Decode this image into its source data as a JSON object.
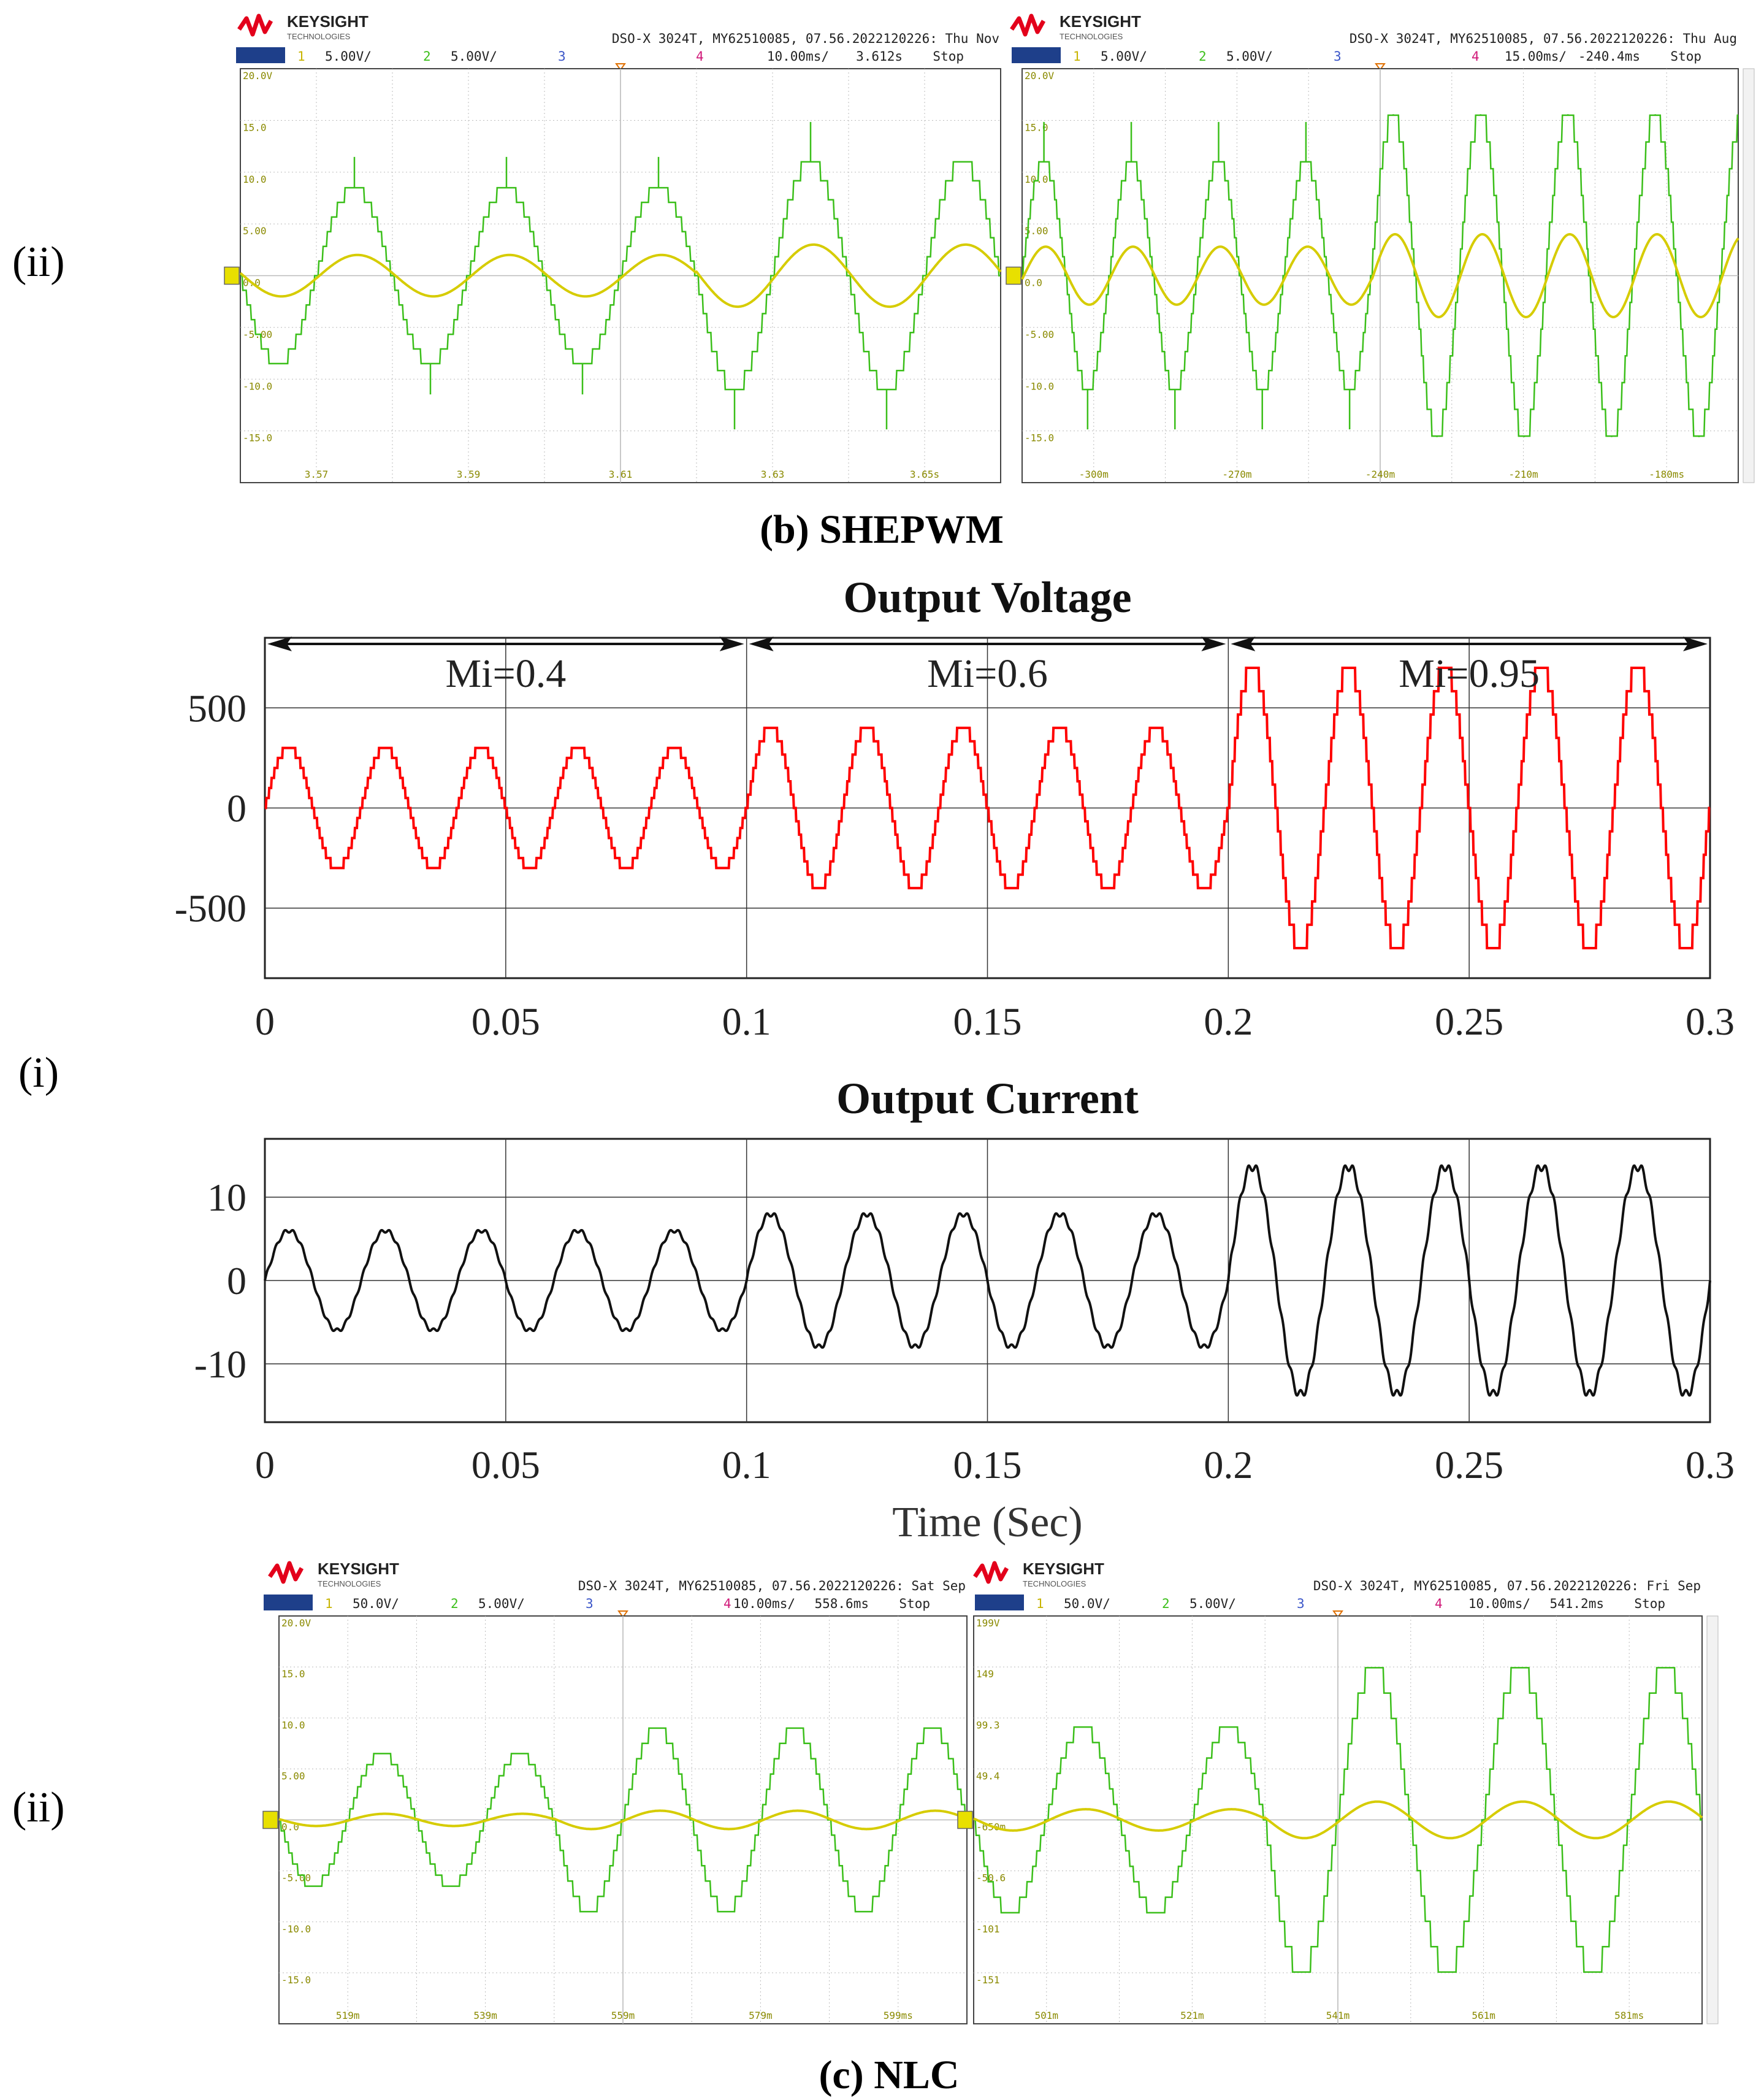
{
  "colors": {
    "scope_green": "#3bbf1a",
    "scope_yellow": "#d6cc00",
    "sim_red": "#ff0000",
    "sim_black": "#111111",
    "keysight_red": "#e3001b",
    "scope_grid": "#bbbbbb",
    "grid_label": "#8a8a00"
  },
  "figure": {
    "caption_b": "(b) SHEPWM",
    "caption_c": "(c) NLC",
    "label_top": "(ii)",
    "label_middle": "(i)",
    "label_bottom": "(ii)"
  },
  "scopes": [
    {
      "brand": "KEYSIGHT",
      "brand_sub": "TECHNOLOGIES",
      "header": "DSO-X 3024T, MY62510085, 07.56.2022120226: Thu Nov",
      "ch1_scale": "5.00V/",
      "ch2_scale": "5.00V/",
      "ch_nums": [
        "1",
        "2",
        "3",
        "4"
      ],
      "timebase": "10.00ms/",
      "delay": "3.612s",
      "status": "Stop",
      "ylabels": [
        "20.0V",
        "15.0",
        "10.0",
        "5.00",
        "0.0",
        "-5.00",
        "-10.0",
        "-15.0"
      ],
      "xlabels": [
        "3.57",
        "3.59",
        "3.61",
        "3.63",
        "3.65s"
      ]
    },
    {
      "brand": "KEYSIGHT",
      "brand_sub": "TECHNOLOGIES",
      "header": "DSO-X 3024T, MY62510085, 07.56.2022120226: Thu Aug",
      "ch1_scale": "5.00V/",
      "ch2_scale": "5.00V/",
      "ch_nums": [
        "1",
        "2",
        "3",
        "4"
      ],
      "timebase": "15.00ms/",
      "delay": "-240.4ms",
      "status": "Stop",
      "ylabels": [
        "20.0V",
        "15.0",
        "10.0",
        "5.00",
        "0.0",
        "-5.00",
        "-10.0",
        "-15.0"
      ],
      "xlabels": [
        "-300m",
        "-270m",
        "-240m",
        "-210m",
        "-180ms"
      ]
    },
    {
      "brand": "KEYSIGHT",
      "brand_sub": "TECHNOLOGIES",
      "header": "DSO-X 3024T, MY62510085, 07.56.2022120226: Sat Sep",
      "ch1_scale": "50.0V/",
      "ch2_scale": "5.00V/",
      "ch_nums": [
        "1",
        "2",
        "3",
        "4"
      ],
      "timebase": "10.00ms/",
      "delay": "558.6ms",
      "status": "Stop",
      "ylabels": [
        "20.0V",
        "15.0",
        "10.0",
        "5.00",
        "0.0",
        "-5.00",
        "-10.0",
        "-15.0"
      ],
      "xlabels": [
        "519m",
        "539m",
        "559m",
        "579m",
        "599ms"
      ]
    },
    {
      "brand": "KEYSIGHT",
      "brand_sub": "TECHNOLOGIES",
      "header": "DSO-X 3024T, MY62510085, 07.56.2022120226: Fri Sep",
      "ch1_scale": "50.0V/",
      "ch2_scale": "5.00V/",
      "ch_nums": [
        "1",
        "2",
        "3",
        "4"
      ],
      "timebase": "10.00ms/",
      "delay": "541.2ms",
      "status": "Stop",
      "ylabels": [
        "199V",
        "149",
        "99.3",
        "49.4",
        "-650m",
        "-50.6",
        "-101",
        "-151"
      ],
      "xlabels": [
        "501m",
        "521m",
        "541m",
        "561m",
        "581ms"
      ]
    }
  ],
  "chart_data": [
    {
      "type": "line",
      "title": "Output Voltage",
      "xlabel": "",
      "ylabel": "",
      "xlim": [
        0,
        0.3
      ],
      "ylim": [
        -850,
        850
      ],
      "xticks": [
        "0",
        "0.05",
        "0.1",
        "0.15",
        "0.2",
        "0.25",
        "0.3"
      ],
      "yticks": [
        "500",
        "0",
        "-500"
      ],
      "ytick_values": [
        500,
        0,
        -500
      ],
      "frequency_hz": 50,
      "segments": [
        {
          "label": "Mi=0.4",
          "start": 0,
          "end": 0.1,
          "amplitude": 300
        },
        {
          "label": "Mi=0.6",
          "start": 0.1,
          "end": 0.2,
          "amplitude": 400
        },
        {
          "label": "Mi=0.95",
          "start": 0.2,
          "end": 0.3,
          "amplitude": 700
        }
      ]
    },
    {
      "type": "line",
      "title": "Output Current",
      "xlabel": "Time (Sec)",
      "ylabel": "",
      "xlim": [
        0,
        0.3
      ],
      "ylim": [
        -17,
        17
      ],
      "xticks": [
        "0",
        "0.05",
        "0.1",
        "0.15",
        "0.2",
        "0.25",
        "0.3"
      ],
      "yticks": [
        "10",
        "0",
        "-10"
      ],
      "ytick_values": [
        10,
        0,
        -10
      ],
      "frequency_hz": 50,
      "segments": [
        {
          "start": 0,
          "end": 0.1,
          "amplitude": 6
        },
        {
          "start": 0.1,
          "end": 0.2,
          "amplitude": 8
        },
        {
          "start": 0.2,
          "end": 0.3,
          "amplitude": 13.7
        }
      ]
    },
    {
      "type": "line",
      "title": "SHEPWM scope capture 1",
      "x": [
        "3.57",
        "3.59",
        "3.61",
        "3.63",
        "3.65s"
      ],
      "series": [
        {
          "name": "Ch2 voltage (green)",
          "cycles": 5,
          "amplitudes": [
            8.5,
            8.5,
            8.5,
            11,
            11
          ],
          "peak_spike": 15
        },
        {
          "name": "Ch1 current (yellow)",
          "cycles": 5,
          "amplitudes": [
            2,
            2,
            2,
            3,
            3
          ]
        }
      ]
    },
    {
      "type": "line",
      "title": "SHEPWM scope capture 2",
      "x": [
        "-300m",
        "-270m",
        "-240m",
        "-210m",
        "-180ms"
      ],
      "series": [
        {
          "name": "Ch2 voltage (green)",
          "cycles": 8.2,
          "amplitudes": [
            11,
            11,
            11,
            11,
            15.5,
            15.5,
            15.5,
            15.5,
            15.5
          ],
          "peak_spike": 15
        },
        {
          "name": "Ch1 current (yellow)",
          "cycles": 8.2,
          "amplitudes": [
            2.8,
            2.8,
            2.8,
            2.8,
            4,
            4,
            4,
            4,
            4
          ]
        }
      ]
    },
    {
      "type": "line",
      "title": "NLC scope capture 1",
      "x": [
        "519m",
        "539m",
        "559m",
        "579m",
        "599ms"
      ],
      "series": [
        {
          "name": "Ch2 voltage (green)",
          "cycles": 5,
          "amplitudes": [
            6.5,
            6.5,
            9,
            9,
            9
          ]
        },
        {
          "name": "Ch1 current (yellow)",
          "cycles": 5,
          "amplitudes": [
            0.5,
            0.5,
            0.8,
            0.8,
            0.8
          ]
        }
      ]
    },
    {
      "type": "line",
      "title": "NLC scope capture 2",
      "x": [
        "501m",
        "521m",
        "541m",
        "561m",
        "581ms"
      ],
      "series": [
        {
          "name": "Ch2 voltage (green)",
          "cycles": 5,
          "amplitudes": [
            90,
            90,
            150,
            150,
            150
          ]
        },
        {
          "name": "Ch1 current (yellow)",
          "cycles": 5,
          "amplitudes": [
            10,
            10,
            17,
            17,
            17
          ]
        }
      ]
    }
  ]
}
